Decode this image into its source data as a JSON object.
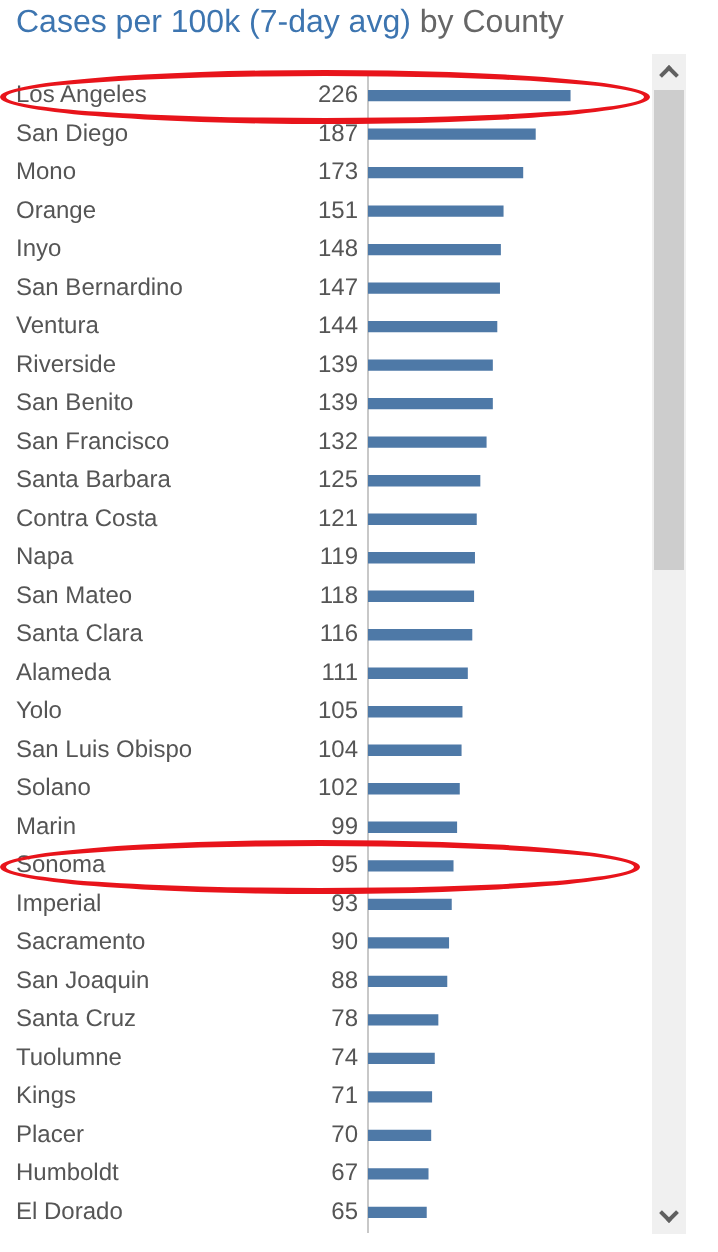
{
  "chart_data": {
    "type": "bar",
    "orientation": "horizontal",
    "title": "Cases per 100k (7-day avg)",
    "subtitle": "by County",
    "categories": [
      "Los Angeles",
      "San Diego",
      "Mono",
      "Orange",
      "Inyo",
      "San Bernardino",
      "Ventura",
      "Riverside",
      "San Benito",
      "San Francisco",
      "Santa Barbara",
      "Contra Costa",
      "Napa",
      "San Mateo",
      "Santa Clara",
      "Alameda",
      "Yolo",
      "San Luis Obispo",
      "Solano",
      "Marin",
      "Sonoma",
      "Imperial",
      "Sacramento",
      "San Joaquin",
      "Santa Cruz",
      "Tuolumne",
      "Kings",
      "Placer",
      "Humboldt",
      "El Dorado"
    ],
    "values": [
      226,
      187,
      173,
      151,
      148,
      147,
      144,
      139,
      139,
      132,
      125,
      121,
      119,
      118,
      116,
      111,
      105,
      104,
      102,
      99,
      95,
      93,
      90,
      88,
      78,
      74,
      71,
      70,
      67,
      65
    ],
    "color": "#4e79a7",
    "data_labels": true,
    "tick_labels": "y",
    "legend": false
  }
}
